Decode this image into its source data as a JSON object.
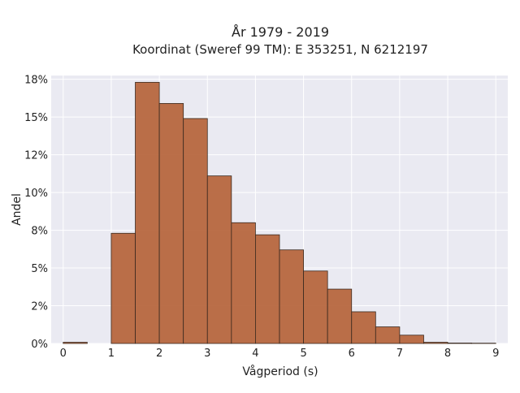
{
  "chart_data": {
    "type": "bar",
    "title": "År 1979 - 2019",
    "subtitle": "Koordinat (Sweref 99 TM): E 353251, N 6212197",
    "xlabel": "Vågperiod (s)",
    "ylabel": "Andel",
    "xlim": [
      -0.25,
      9.25
    ],
    "ylim": [
      0,
      0.1775
    ],
    "x_ticks": [
      0,
      1,
      2,
      3,
      4,
      5,
      6,
      7,
      8,
      9
    ],
    "x_tick_labels": [
      "0",
      "1",
      "2",
      "3",
      "4",
      "5",
      "6",
      "7",
      "8",
      "9"
    ],
    "y_ticks": [
      0,
      0.025,
      0.05,
      0.075,
      0.1,
      0.125,
      0.15,
      0.175
    ],
    "y_tick_labels": [
      "0%",
      "2%",
      "5%",
      "8%",
      "10%",
      "12%",
      "15%",
      "18%"
    ],
    "bin_width": 0.5,
    "bins": [
      {
        "x0": 0.0,
        "x1": 0.5,
        "value": 0.0008
      },
      {
        "x0": 0.5,
        "x1": 1.0,
        "value": 0.0
      },
      {
        "x0": 1.0,
        "x1": 1.5,
        "value": 0.073
      },
      {
        "x0": 1.5,
        "x1": 2.0,
        "value": 0.173
      },
      {
        "x0": 2.0,
        "x1": 2.5,
        "value": 0.159
      },
      {
        "x0": 2.5,
        "x1": 3.0,
        "value": 0.149
      },
      {
        "x0": 3.0,
        "x1": 3.5,
        "value": 0.111
      },
      {
        "x0": 3.5,
        "x1": 4.0,
        "value": 0.08
      },
      {
        "x0": 4.0,
        "x1": 4.5,
        "value": 0.072
      },
      {
        "x0": 4.5,
        "x1": 5.0,
        "value": 0.062
      },
      {
        "x0": 5.0,
        "x1": 5.5,
        "value": 0.048
      },
      {
        "x0": 5.5,
        "x1": 6.0,
        "value": 0.036
      },
      {
        "x0": 6.0,
        "x1": 6.5,
        "value": 0.021
      },
      {
        "x0": 6.5,
        "x1": 7.0,
        "value": 0.011
      },
      {
        "x0": 7.0,
        "x1": 7.5,
        "value": 0.0055
      },
      {
        "x0": 7.5,
        "x1": 8.0,
        "value": 0.0008
      },
      {
        "x0": 8.0,
        "x1": 8.5,
        "value": 0.0003
      },
      {
        "x0": 8.5,
        "x1": 9.0,
        "value": 0.0002
      }
    ],
    "grid": true,
    "bar_color": "#b5633a",
    "bar_edge_color": "#3a2a20",
    "plot_background": "#eaeaf2",
    "grid_color": "#ffffff"
  }
}
